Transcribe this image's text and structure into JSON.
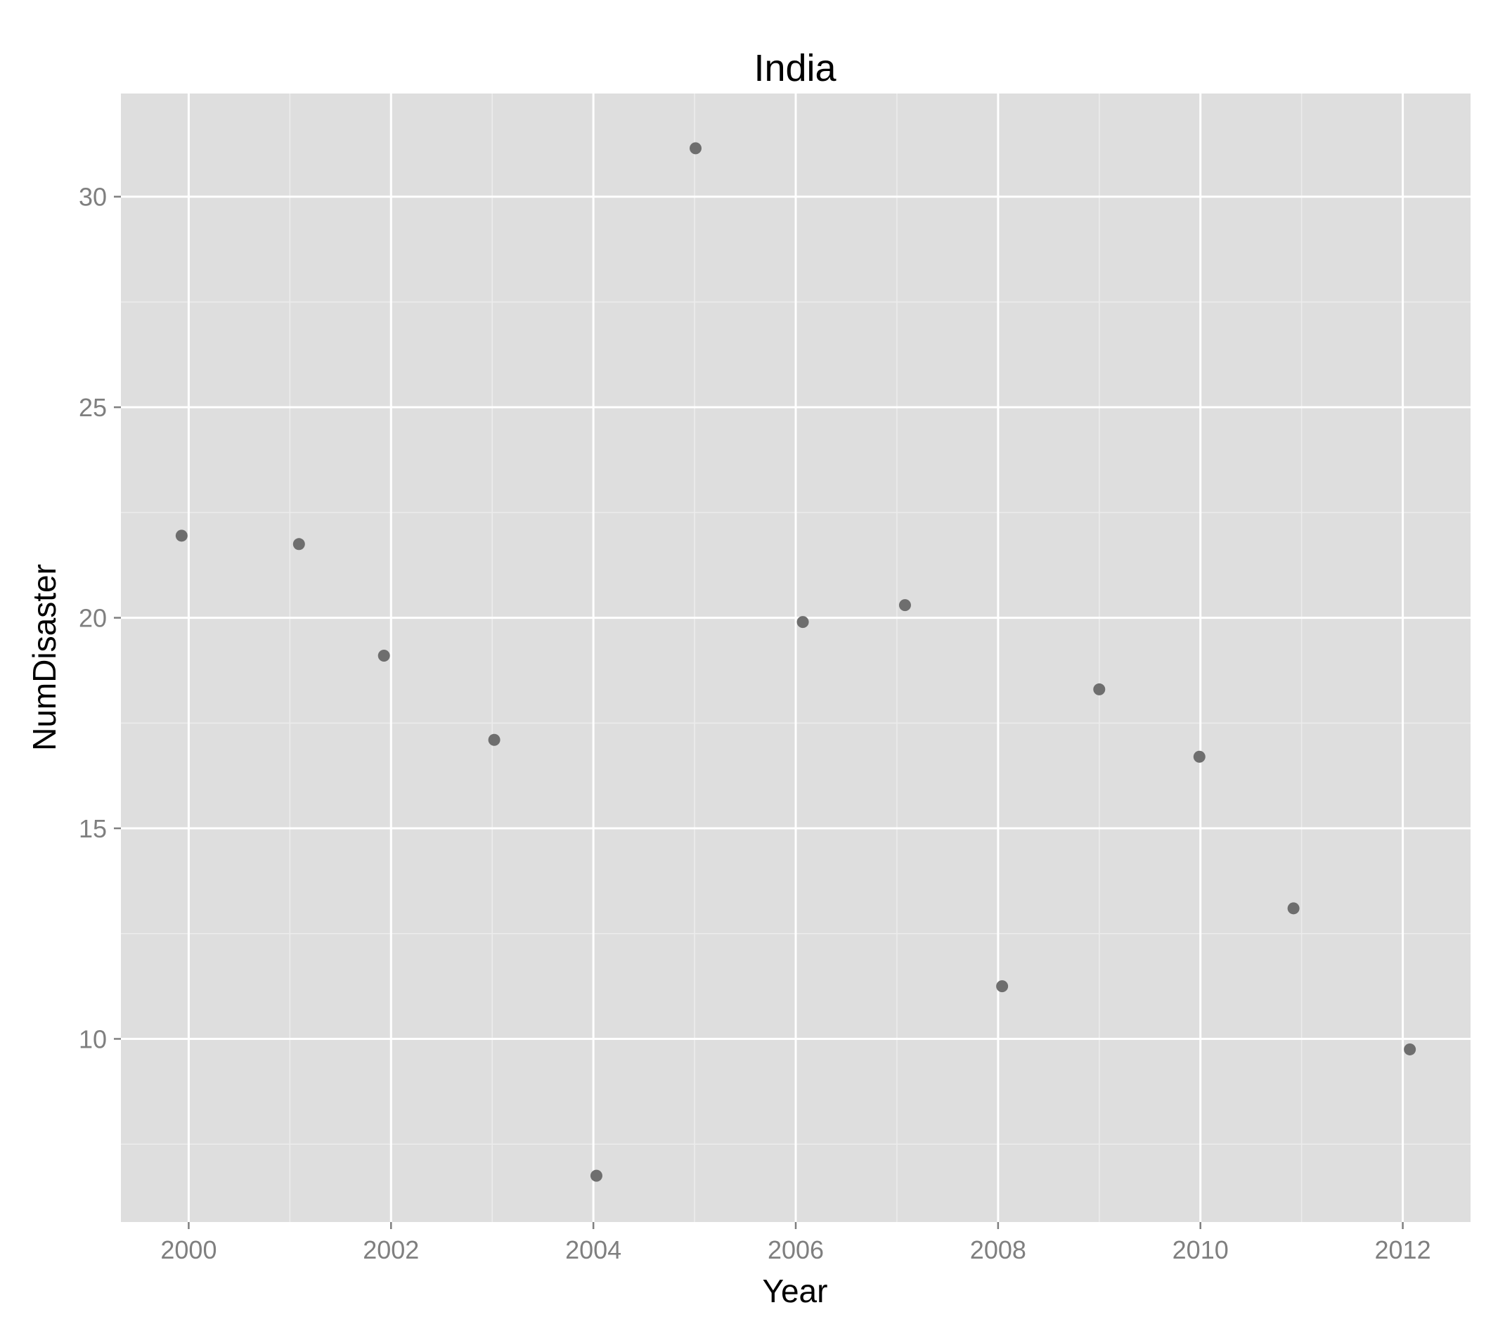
{
  "chart_data": {
    "type": "scatter",
    "title": "India",
    "xlabel": "Year",
    "ylabel": "NumDisaster",
    "xlim": [
      1999.33,
      2012.67
    ],
    "ylim": [
      5.65,
      32.45
    ],
    "x_ticks": [
      2000,
      2002,
      2004,
      2006,
      2008,
      2010,
      2012
    ],
    "x_tick_labels": [
      "2000",
      "2002",
      "2004",
      "2006",
      "2008",
      "2010",
      "2012"
    ],
    "y_ticks": [
      10,
      15,
      20,
      25,
      30
    ],
    "y_tick_labels": [
      "10",
      "15",
      "20",
      "25",
      "30"
    ],
    "grid": true,
    "legend": "none",
    "colors": {
      "panel": "#dedede",
      "grid_major": "#ffffff",
      "grid_minor": "#ececec",
      "point": "#6e6e6e",
      "tick": "#7f7f7f"
    },
    "points": [
      {
        "x": 1999.93,
        "y": 21.95
      },
      {
        "x": 2001.09,
        "y": 21.75
      },
      {
        "x": 2001.93,
        "y": 19.1
      },
      {
        "x": 2003.02,
        "y": 17.1
      },
      {
        "x": 2004.03,
        "y": 6.75
      },
      {
        "x": 2005.01,
        "y": 31.15
      },
      {
        "x": 2006.07,
        "y": 19.9
      },
      {
        "x": 2007.08,
        "y": 20.3
      },
      {
        "x": 2008.04,
        "y": 11.25
      },
      {
        "x": 2009.0,
        "y": 18.3
      },
      {
        "x": 2009.99,
        "y": 16.7
      },
      {
        "x": 2010.92,
        "y": 13.1
      },
      {
        "x": 2012.07,
        "y": 9.75
      }
    ]
  }
}
